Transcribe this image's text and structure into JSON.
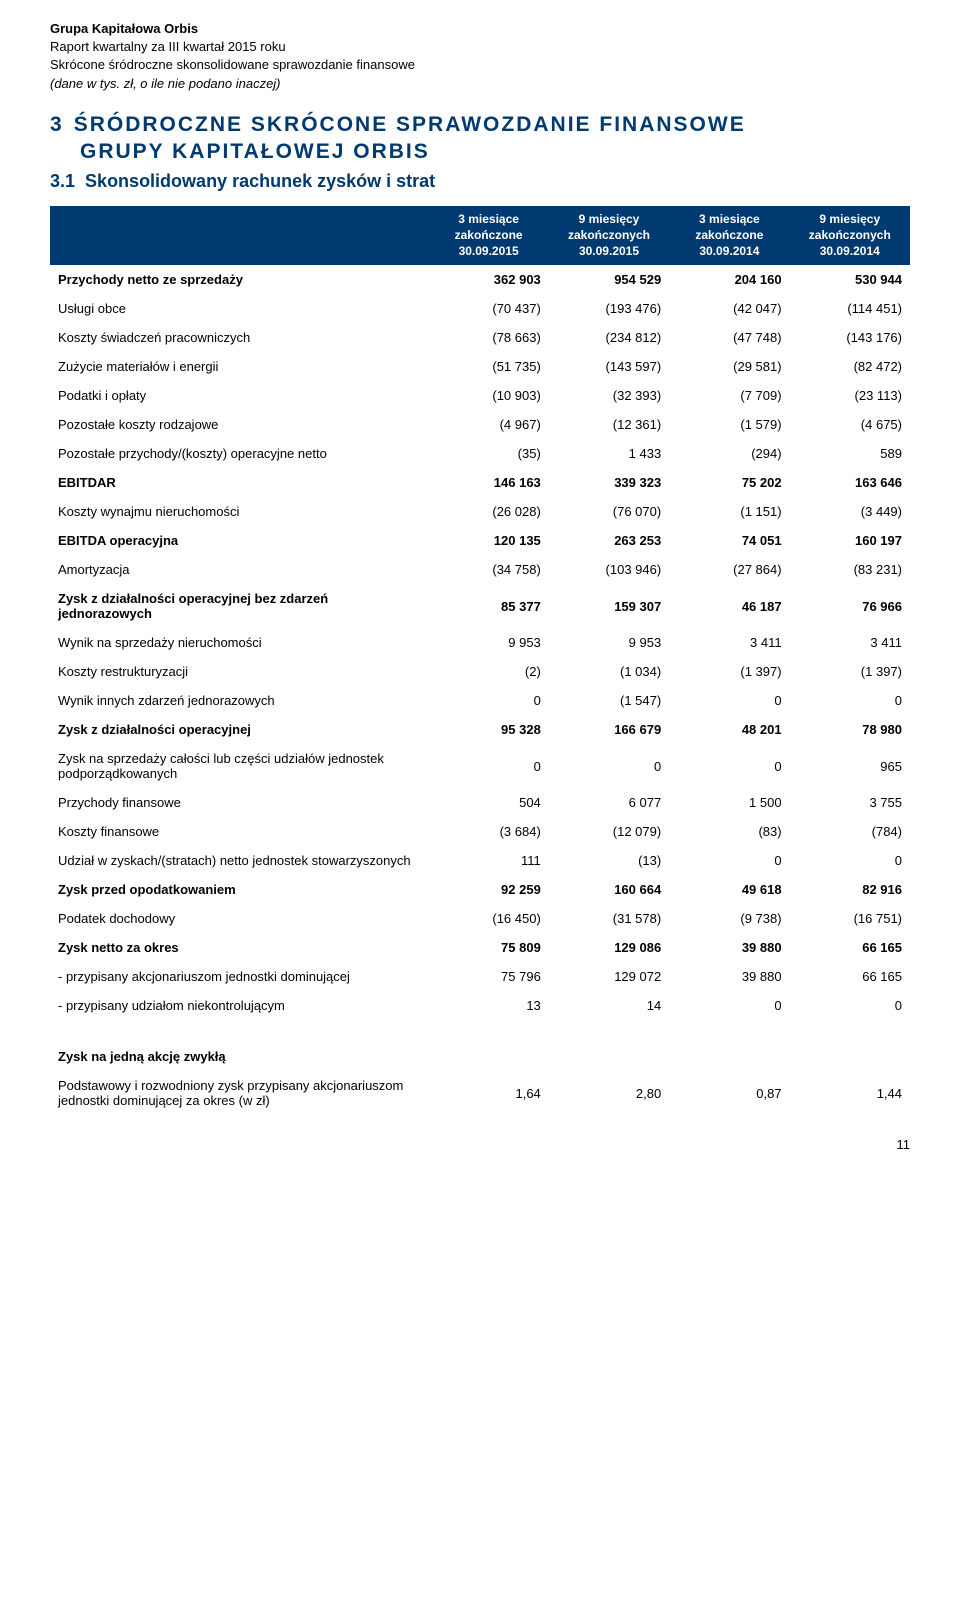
{
  "header": {
    "line1": "Grupa Kapitałowa Orbis",
    "line2": "Raport kwartalny za III kwartał 2015 roku",
    "line3": "Skrócone śródroczne skonsolidowane sprawozdanie finansowe",
    "line4": "(dane w tys. zł, o ile nie podano inaczej)"
  },
  "section": {
    "number": "3",
    "title_part1": "ŚRÓDROCZNE  SKRÓCONE  SPRAWOZDANIE  FINANSOWE",
    "title_part2": "GRUPY KAPITAŁOWEJ ORBIS"
  },
  "subsection": {
    "number": "3.1",
    "title": "Skonsolidowany rachunek zysków i strat"
  },
  "columns": [
    "3 miesiące zakończone 30.09.2015",
    "9 miesięcy zakończonych 30.09.2015",
    "3 miesiące zakończone 30.09.2014",
    "9 miesięcy zakończonych 30.09.2014"
  ],
  "rows": [
    {
      "label": "Przychody netto ze sprzedaży",
      "v": [
        "362 903",
        "954 529",
        "204 160",
        "530 944"
      ],
      "bold": true
    },
    {
      "label": "Usługi obce",
      "v": [
        "(70 437)",
        "(193 476)",
        "(42 047)",
        "(114 451)"
      ]
    },
    {
      "label": "Koszty świadczeń pracowniczych",
      "v": [
        "(78 663)",
        "(234 812)",
        "(47 748)",
        "(143 176)"
      ]
    },
    {
      "label": "Zużycie materiałów i energii",
      "v": [
        "(51 735)",
        "(143 597)",
        "(29 581)",
        "(82 472)"
      ]
    },
    {
      "label": "Podatki i opłaty",
      "v": [
        "(10 903)",
        "(32 393)",
        "(7 709)",
        "(23 113)"
      ]
    },
    {
      "label": "Pozostałe koszty rodzajowe",
      "v": [
        "(4 967)",
        "(12 361)",
        "(1 579)",
        "(4 675)"
      ]
    },
    {
      "label": "Pozostałe przychody/(koszty) operacyjne netto",
      "v": [
        "(35)",
        "1 433",
        "(294)",
        "589"
      ]
    },
    {
      "label": "EBITDAR",
      "v": [
        "146 163",
        "339 323",
        "75 202",
        "163 646"
      ],
      "bold": true
    },
    {
      "label": "Koszty wynajmu nieruchomości",
      "v": [
        "(26 028)",
        "(76 070)",
        "(1 151)",
        "(3 449)"
      ]
    },
    {
      "label": "EBITDA operacyjna",
      "v": [
        "120 135",
        "263 253",
        "74 051",
        "160 197"
      ],
      "bold": true
    },
    {
      "label": "Amortyzacja",
      "v": [
        "(34 758)",
        "(103 946)",
        "(27 864)",
        "(83 231)"
      ]
    },
    {
      "label": "Zysk z działalności operacyjnej bez zdarzeń jednorazowych",
      "v": [
        "85 377",
        "159 307",
        "46 187",
        "76 966"
      ],
      "bold": true
    },
    {
      "label": "Wynik na sprzedaży nieruchomości",
      "v": [
        "9 953",
        "9 953",
        "3 411",
        "3 411"
      ]
    },
    {
      "label": "Koszty restrukturyzacji",
      "v": [
        "(2)",
        "(1 034)",
        "(1 397)",
        "(1 397)"
      ]
    },
    {
      "label": "Wynik innych zdarzeń jednorazowych",
      "v": [
        "0",
        "(1 547)",
        "0",
        "0"
      ]
    },
    {
      "label": "Zysk z działalności operacyjnej",
      "v": [
        "95 328",
        "166 679",
        "48 201",
        "78 980"
      ],
      "bold": true
    },
    {
      "label": "Zysk na sprzedaży całości lub części udziałów jednostek podporządkowanych",
      "v": [
        "0",
        "0",
        "0",
        "965"
      ]
    },
    {
      "label": "Przychody finansowe",
      "v": [
        "504",
        "6 077",
        "1 500",
        "3 755"
      ]
    },
    {
      "label": "Koszty finansowe",
      "v": [
        "(3 684)",
        "(12 079)",
        "(83)",
        "(784)"
      ]
    },
    {
      "label": "Udział w zyskach/(stratach) netto jednostek stowarzyszonych",
      "v": [
        "111",
        "(13)",
        "0",
        "0"
      ]
    },
    {
      "label": "Zysk przed opodatkowaniem",
      "v": [
        "92 259",
        "160 664",
        "49 618",
        "82 916"
      ],
      "bold": true
    },
    {
      "label": "Podatek dochodowy",
      "v": [
        "(16 450)",
        "(31 578)",
        "(9 738)",
        "(16 751)"
      ]
    },
    {
      "label": "Zysk netto za okres",
      "v": [
        "75 809",
        "129 086",
        "39 880",
        "66 165"
      ],
      "bold": true
    },
    {
      "label": "- przypisany akcjonariuszom jednostki dominującej",
      "v": [
        "75 796",
        "129 072",
        "39 880",
        "66 165"
      ]
    },
    {
      "label": "- przypisany udziałom niekontrolującym",
      "v": [
        "13",
        "14",
        "0",
        "0"
      ]
    }
  ],
  "eps_section": {
    "heading": "Zysk na jedną akcję zwykłą",
    "row": {
      "label": "Podstawowy i rozwodniony zysk przypisany akcjonariuszom jednostki dominującej za okres (w zł)",
      "v": [
        "1,64",
        "2,80",
        "0,87",
        "1,44"
      ]
    }
  },
  "page_number": "11",
  "style": {
    "brand_color": "#003a70",
    "bg": "#ffffff"
  }
}
